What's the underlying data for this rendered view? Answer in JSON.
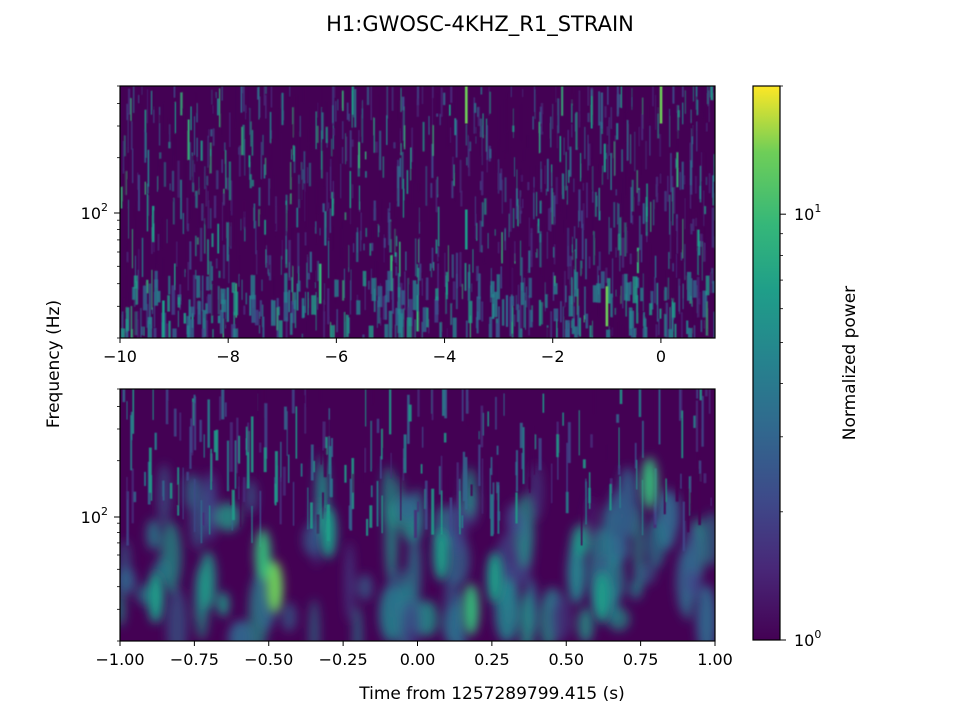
{
  "chart_data": {
    "type": "heatmap",
    "title": "H1:GWOSC-4KHZ_R1_STRAIN",
    "panels": [
      {
        "name": "top",
        "xlim": [
          -10,
          1
        ],
        "xticks": [
          -10,
          -8,
          -6,
          -4,
          -2,
          0
        ],
        "xtick_labels": [
          "−10",
          "−8",
          "−6",
          "−4",
          "−2",
          "0"
        ],
        "yscale": "log",
        "ylim": [
          20,
          500
        ],
        "ytick_labels": [
          "10",
          "2"
        ],
        "bright_spots": [
          {
            "t": -3.6,
            "f": 400,
            "power": 12
          },
          {
            "t": -1.0,
            "f": 30,
            "power": 11
          },
          {
            "t": 0.0,
            "f": 400,
            "power": 12
          },
          {
            "t": -6.3,
            "f": 40,
            "power": 7
          },
          {
            "t": -3.6,
            "f": 80,
            "power": 6
          },
          {
            "t": -9.2,
            "f": 25,
            "power": 5
          }
        ]
      },
      {
        "name": "bottom",
        "xlim": [
          -1.0,
          1.0
        ],
        "xticks": [
          -1.0,
          -0.75,
          -0.5,
          -0.25,
          0.0,
          0.25,
          0.5,
          0.75,
          1.0
        ],
        "xtick_labels": [
          "−1.00",
          "−0.75",
          "−0.50",
          "−0.25",
          "0.00",
          "0.25",
          "0.50",
          "0.75",
          "1.00"
        ],
        "yscale": "log",
        "ylim": [
          20,
          500
        ],
        "ytick_labels": [
          "10",
          "2"
        ],
        "bright_spots": [
          {
            "t": -0.48,
            "f": 40,
            "power": 9
          },
          {
            "t": -0.52,
            "f": 60,
            "power": 7
          },
          {
            "t": -0.88,
            "f": 35,
            "power": 6
          },
          {
            "t": -0.3,
            "f": 80,
            "power": 5
          },
          {
            "t": 0.18,
            "f": 30,
            "power": 7
          },
          {
            "t": 0.26,
            "f": 45,
            "power": 6
          },
          {
            "t": 0.08,
            "f": 60,
            "power": 5
          },
          {
            "t": 0.78,
            "f": 150,
            "power": 8
          },
          {
            "t": 0.62,
            "f": 35,
            "power": 5
          }
        ]
      }
    ],
    "xlabel": "Time from 1257289799.415 (s)",
    "ylabel": "Frequency (Hz)",
    "colorbar": {
      "label": "Normalized power",
      "scale": "log",
      "range": [
        1,
        20
      ],
      "ticks": [
        {
          "base": "10",
          "exp": "0"
        },
        {
          "base": "10",
          "exp": "1"
        }
      ]
    },
    "colormap": "viridis"
  }
}
